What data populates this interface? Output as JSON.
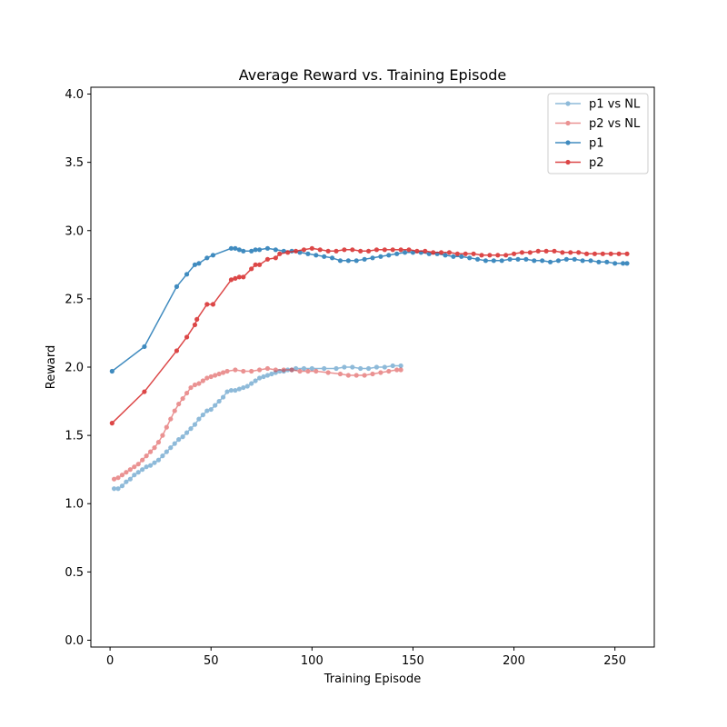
{
  "chart_data": {
    "type": "line",
    "title": "Average Reward vs. Training Episode",
    "xlabel": "Training Episode",
    "ylabel": "Reward",
    "xlim": [
      -9.5,
      269.5
    ],
    "ylim": [
      -0.05,
      4.05
    ],
    "xticks": [
      0,
      50,
      100,
      150,
      200,
      250
    ],
    "yticks": [
      0.0,
      0.5,
      1.0,
      1.5,
      2.0,
      2.5,
      3.0,
      3.5,
      4.0
    ],
    "ytick_labels": [
      "0.0",
      "0.5",
      "1.0",
      "1.5",
      "2.0",
      "2.5",
      "3.0",
      "3.5",
      "4.0"
    ],
    "grid": false,
    "legend_position": "top-right",
    "series": [
      {
        "name": "p1 vs NL",
        "color": "#1f77b4",
        "alpha": 0.5,
        "points": [
          [
            2,
            1.11
          ],
          [
            4,
            1.11
          ],
          [
            6,
            1.13
          ],
          [
            8,
            1.16
          ],
          [
            10,
            1.18
          ],
          [
            12,
            1.21
          ],
          [
            14,
            1.23
          ],
          [
            16,
            1.25
          ],
          [
            18,
            1.27
          ],
          [
            20,
            1.28
          ],
          [
            22,
            1.3
          ],
          [
            24,
            1.32
          ],
          [
            26,
            1.35
          ],
          [
            28,
            1.38
          ],
          [
            30,
            1.41
          ],
          [
            32,
            1.44
          ],
          [
            34,
            1.47
          ],
          [
            36,
            1.49
          ],
          [
            38,
            1.52
          ],
          [
            40,
            1.55
          ],
          [
            42,
            1.58
          ],
          [
            44,
            1.62
          ],
          [
            46,
            1.65
          ],
          [
            48,
            1.68
          ],
          [
            50,
            1.69
          ],
          [
            52,
            1.72
          ],
          [
            54,
            1.75
          ],
          [
            56,
            1.78
          ],
          [
            58,
            1.82
          ],
          [
            60,
            1.83
          ],
          [
            62,
            1.83
          ],
          [
            64,
            1.84
          ],
          [
            66,
            1.85
          ],
          [
            68,
            1.86
          ],
          [
            70,
            1.88
          ],
          [
            72,
            1.9
          ],
          [
            74,
            1.92
          ],
          [
            76,
            1.93
          ],
          [
            78,
            1.94
          ],
          [
            80,
            1.95
          ],
          [
            82,
            1.96
          ],
          [
            84,
            1.97
          ],
          [
            86,
            1.97
          ],
          [
            88,
            1.98
          ],
          [
            90,
            1.98
          ],
          [
            92,
            1.99
          ],
          [
            96,
            1.99
          ],
          [
            100,
            1.99
          ],
          [
            106,
            1.99
          ],
          [
            112,
            1.99
          ],
          [
            116,
            2.0
          ],
          [
            120,
            2.0
          ],
          [
            124,
            1.99
          ],
          [
            128,
            1.99
          ],
          [
            132,
            2.0
          ],
          [
            136,
            2.0
          ],
          [
            140,
            2.01
          ],
          [
            144,
            2.01
          ]
        ]
      },
      {
        "name": "p2 vs NL",
        "color": "#d62728",
        "alpha": 0.5,
        "points": [
          [
            2,
            1.18
          ],
          [
            4,
            1.19
          ],
          [
            6,
            1.21
          ],
          [
            8,
            1.23
          ],
          [
            10,
            1.25
          ],
          [
            12,
            1.27
          ],
          [
            14,
            1.29
          ],
          [
            16,
            1.32
          ],
          [
            18,
            1.35
          ],
          [
            20,
            1.38
          ],
          [
            22,
            1.41
          ],
          [
            24,
            1.45
          ],
          [
            26,
            1.5
          ],
          [
            28,
            1.56
          ],
          [
            30,
            1.62
          ],
          [
            32,
            1.68
          ],
          [
            34,
            1.73
          ],
          [
            36,
            1.77
          ],
          [
            38,
            1.81
          ],
          [
            40,
            1.85
          ],
          [
            42,
            1.87
          ],
          [
            44,
            1.88
          ],
          [
            46,
            1.9
          ],
          [
            48,
            1.92
          ],
          [
            50,
            1.93
          ],
          [
            52,
            1.94
          ],
          [
            54,
            1.95
          ],
          [
            56,
            1.96
          ],
          [
            58,
            1.97
          ],
          [
            62,
            1.98
          ],
          [
            66,
            1.97
          ],
          [
            70,
            1.97
          ],
          [
            74,
            1.98
          ],
          [
            78,
            1.99
          ],
          [
            82,
            1.98
          ],
          [
            86,
            1.98
          ],
          [
            90,
            1.98
          ],
          [
            94,
            1.97
          ],
          [
            98,
            1.97
          ],
          [
            102,
            1.97
          ],
          [
            108,
            1.96
          ],
          [
            114,
            1.95
          ],
          [
            118,
            1.94
          ],
          [
            122,
            1.94
          ],
          [
            126,
            1.94
          ],
          [
            130,
            1.95
          ],
          [
            134,
            1.96
          ],
          [
            138,
            1.97
          ],
          [
            142,
            1.98
          ],
          [
            144,
            1.98
          ]
        ]
      },
      {
        "name": "p1",
        "color": "#1f77b4",
        "alpha": 0.85,
        "points": [
          [
            1,
            1.97
          ],
          [
            17,
            2.15
          ],
          [
            33,
            2.59
          ],
          [
            38,
            2.68
          ],
          [
            42,
            2.75
          ],
          [
            44,
            2.76
          ],
          [
            48,
            2.8
          ],
          [
            51,
            2.82
          ],
          [
            60,
            2.87
          ],
          [
            62,
            2.87
          ],
          [
            64,
            2.86
          ],
          [
            66,
            2.85
          ],
          [
            70,
            2.85
          ],
          [
            72,
            2.86
          ],
          [
            74,
            2.86
          ],
          [
            78,
            2.87
          ],
          [
            82,
            2.86
          ],
          [
            86,
            2.85
          ],
          [
            90,
            2.85
          ],
          [
            94,
            2.84
          ],
          [
            98,
            2.83
          ],
          [
            102,
            2.82
          ],
          [
            106,
            2.81
          ],
          [
            110,
            2.8
          ],
          [
            114,
            2.78
          ],
          [
            118,
            2.78
          ],
          [
            122,
            2.78
          ],
          [
            126,
            2.79
          ],
          [
            130,
            2.8
          ],
          [
            134,
            2.81
          ],
          [
            138,
            2.82
          ],
          [
            142,
            2.83
          ],
          [
            146,
            2.84
          ],
          [
            150,
            2.84
          ],
          [
            154,
            2.84
          ],
          [
            158,
            2.83
          ],
          [
            162,
            2.83
          ],
          [
            166,
            2.82
          ],
          [
            170,
            2.81
          ],
          [
            174,
            2.81
          ],
          [
            178,
            2.8
          ],
          [
            182,
            2.79
          ],
          [
            186,
            2.78
          ],
          [
            190,
            2.78
          ],
          [
            194,
            2.78
          ],
          [
            198,
            2.79
          ],
          [
            202,
            2.79
          ],
          [
            206,
            2.79
          ],
          [
            210,
            2.78
          ],
          [
            214,
            2.78
          ],
          [
            218,
            2.77
          ],
          [
            222,
            2.78
          ],
          [
            226,
            2.79
          ],
          [
            230,
            2.79
          ],
          [
            234,
            2.78
          ],
          [
            238,
            2.78
          ],
          [
            242,
            2.77
          ],
          [
            246,
            2.77
          ],
          [
            250,
            2.76
          ],
          [
            254,
            2.76
          ],
          [
            256,
            2.76
          ]
        ]
      },
      {
        "name": "p2",
        "color": "#d62728",
        "alpha": 0.85,
        "points": [
          [
            1,
            1.59
          ],
          [
            17,
            1.82
          ],
          [
            33,
            2.12
          ],
          [
            38,
            2.22
          ],
          [
            42,
            2.31
          ],
          [
            43,
            2.35
          ],
          [
            48,
            2.46
          ],
          [
            51,
            2.46
          ],
          [
            60,
            2.64
          ],
          [
            62,
            2.65
          ],
          [
            64,
            2.66
          ],
          [
            66,
            2.66
          ],
          [
            70,
            2.72
          ],
          [
            72,
            2.75
          ],
          [
            74,
            2.75
          ],
          [
            78,
            2.79
          ],
          [
            82,
            2.8
          ],
          [
            84,
            2.83
          ],
          [
            88,
            2.84
          ],
          [
            92,
            2.85
          ],
          [
            96,
            2.86
          ],
          [
            100,
            2.87
          ],
          [
            104,
            2.86
          ],
          [
            108,
            2.85
          ],
          [
            112,
            2.85
          ],
          [
            116,
            2.86
          ],
          [
            120,
            2.86
          ],
          [
            124,
            2.85
          ],
          [
            128,
            2.85
          ],
          [
            132,
            2.86
          ],
          [
            136,
            2.86
          ],
          [
            140,
            2.86
          ],
          [
            144,
            2.86
          ],
          [
            148,
            2.86
          ],
          [
            152,
            2.85
          ],
          [
            156,
            2.85
          ],
          [
            160,
            2.84
          ],
          [
            164,
            2.84
          ],
          [
            168,
            2.84
          ],
          [
            172,
            2.83
          ],
          [
            176,
            2.83
          ],
          [
            180,
            2.83
          ],
          [
            184,
            2.82
          ],
          [
            188,
            2.82
          ],
          [
            192,
            2.82
          ],
          [
            196,
            2.82
          ],
          [
            200,
            2.83
          ],
          [
            204,
            2.84
          ],
          [
            208,
            2.84
          ],
          [
            212,
            2.85
          ],
          [
            216,
            2.85
          ],
          [
            220,
            2.85
          ],
          [
            224,
            2.84
          ],
          [
            228,
            2.84
          ],
          [
            232,
            2.84
          ],
          [
            236,
            2.83
          ],
          [
            240,
            2.83
          ],
          [
            244,
            2.83
          ],
          [
            248,
            2.83
          ],
          [
            252,
            2.83
          ],
          [
            256,
            2.83
          ]
        ]
      }
    ]
  }
}
